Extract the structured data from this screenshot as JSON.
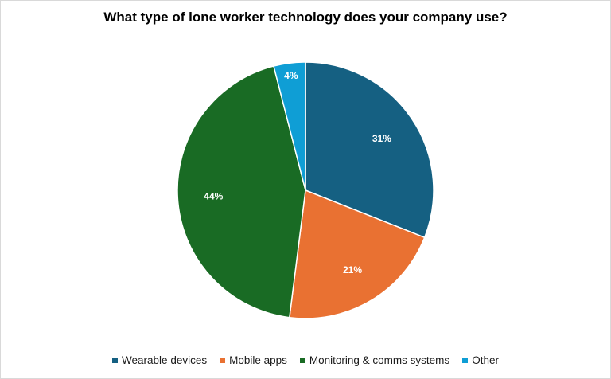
{
  "chart_data": {
    "type": "pie",
    "title": "What type of lone worker technology does your company use?",
    "slices": [
      {
        "label": "Wearable devices",
        "value": 31,
        "display": "31%",
        "color": "#156082"
      },
      {
        "label": "Mobile apps",
        "value": 21,
        "display": "21%",
        "color": "#e97132"
      },
      {
        "label": "Monitoring & comms systems",
        "value": 44,
        "display": "44%",
        "color": "#196b24"
      },
      {
        "label": "Other",
        "value": 4,
        "display": "4%",
        "color": "#0f9ed5"
      }
    ],
    "legend_position": "bottom"
  }
}
